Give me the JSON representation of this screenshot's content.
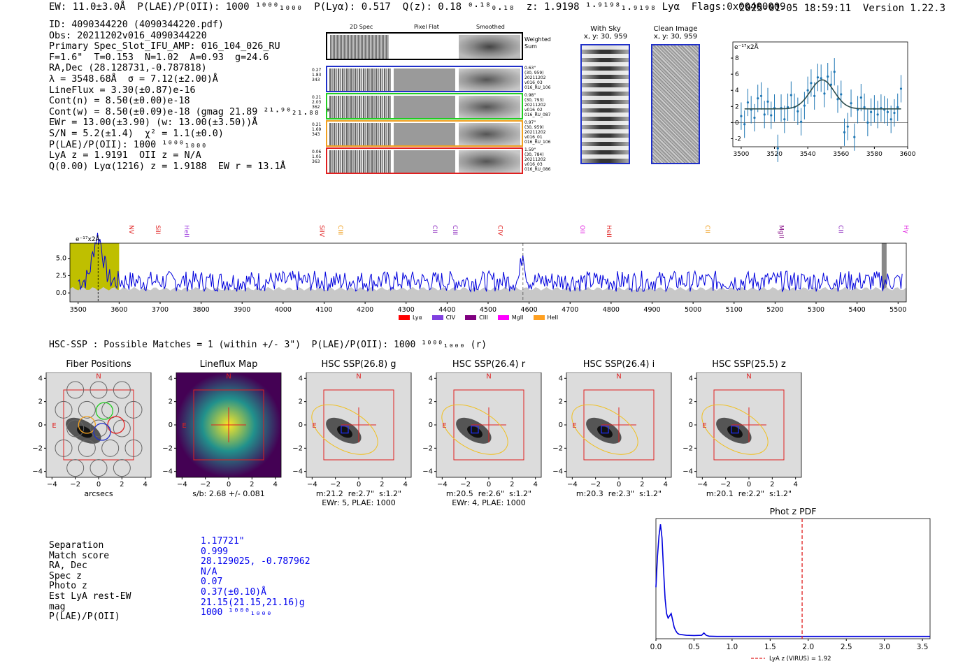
{
  "header": {
    "line": "EW: 11.0±3.0Å  P(LAE)/P(OII): 1000 ¹⁰⁰⁰₁₀₀₀  P(Lyα): 0.517  Q(z): 0.18 ⁰·¹⁸₀.₁₈  z: 1.9198 ¹·⁹¹⁹⁸₁.₉₁₉₈ Lyα  Flags:0x00400009",
    "timestamp": "2025-01-05 18:59:11  Version 1.22.3"
  },
  "info": {
    "lines": [
      "ID: 4090344220 (4090344220.pdf)",
      "Obs: 20211202v016_4090344220",
      "Primary Spec_Slot_IFU_AMP: 016_104_026_RU",
      "F=1.6\"  T=0.153  N=1.02  A=0.93  g=24.6",
      "RA,Dec (28.128731,-0.787818)",
      "λ = 3548.68Å  σ = 7.12(±2.00)Å",
      "LineFlux = 3.30(±0.87)e-16",
      "Cont(n) = 8.50(±0.00)e-18",
      "Cont(w) = 8.50(±0.09)e-18 (gmag 21.89 ²¹·⁹⁰₂₁.₈₈ *)",
      "EWr = 13.00(±3.90) (w: 13.00(±3.50))Å",
      "S/N = 5.2(±1.4)  χ² = 1.1(±0.0)",
      "P(LAE)/P(OII): 1000 ¹⁰⁰⁰₁₀₀₀",
      "LyA z = 1.9191  OII z = N/A",
      "Q(0.00) Lyα(1216) z = 1.9188  EW r = 13.1Å"
    ]
  },
  "cutouts": {
    "col_labels": [
      "2D Spec",
      "Pixel Flat",
      "Smoothed"
    ],
    "weighted_label": "Weighted Sum",
    "rows": [
      {
        "stats": [
          "0.27",
          "1.83",
          "343"
        ],
        "meta": [
          "0.63\"",
          "(30, 959)",
          "20211202",
          "v016_03",
          "016_RU_106"
        ],
        "color": "#2030c8"
      },
      {
        "stats": [
          "0.21",
          "2.03",
          "362"
        ],
        "meta": [
          "0.98\"",
          "(30, 793)",
          "20211202",
          "v016_02",
          "016_RU_087"
        ],
        "color": "#22cc22"
      },
      {
        "stats": [
          "0.21",
          "1.69",
          "343"
        ],
        "meta": [
          "0.97\"",
          "(30, 959)",
          "20211202",
          "v016_01",
          "016_RU_106"
        ],
        "color": "#f0a020"
      },
      {
        "stats": [
          "0.06",
          "1.05",
          "363"
        ],
        "meta": [
          "1.59\"",
          "(30, 784)",
          "20211202",
          "v016_03",
          "016_RU_086"
        ],
        "color": "#e02020"
      }
    ],
    "with_sky": {
      "title": "With Sky",
      "coords": "x, y: 30, 959"
    },
    "clean": {
      "title": "Clean Image",
      "coords": "x, y: 30, 959"
    }
  },
  "line_labels": [
    {
      "name": "NV",
      "wave": 3620,
      "color": "#e02020"
    },
    {
      "name": "SiII",
      "wave": 3685,
      "color": "#e02020"
    },
    {
      "name": "HeII",
      "wave": 3755,
      "color": "#a040e0"
    },
    {
      "name": "SiIV",
      "wave": 4085,
      "color": "#e02020"
    },
    {
      "name": "CIII",
      "wave": 4130,
      "color": "#f0a020"
    },
    {
      "name": "CII",
      "wave": 4360,
      "color": "#9030c0"
    },
    {
      "name": "CIII",
      "wave": 4410,
      "color": "#9030c0"
    },
    {
      "name": "CIV",
      "wave": 4520,
      "color": "#e02020"
    },
    {
      "name": "OII",
      "wave": 4720,
      "color": "#e020e0"
    },
    {
      "name": "HeII",
      "wave": 4785,
      "color": "#e02020"
    },
    {
      "name": "CII",
      "wave": 5025,
      "color": "#f0a020"
    },
    {
      "name": "MgII",
      "wave": 5205,
      "color": "#800080"
    },
    {
      "name": "CII",
      "wave": 5350,
      "color": "#9030c0"
    },
    {
      "name": "Hγ",
      "wave": 5510,
      "color": "#e020e0"
    }
  ],
  "legend": [
    {
      "label": "Lyα",
      "color": "#ff0000"
    },
    {
      "label": "CIV",
      "color": "#8040e0"
    },
    {
      "label": "CIII",
      "color": "#800080"
    },
    {
      "label": "MgII",
      "color": "#ff00ff"
    },
    {
      "label": "HeII",
      "color": "#ffa020"
    }
  ],
  "hsc": {
    "header": "HSC-SSP : Possible Matches = 1 (within +/- 3\")  P(LAE)/P(OII): 1000 ¹⁰⁰⁰₁₀₀₀ (r)",
    "panels": [
      {
        "title": "Fiber Positions",
        "caption1": "arcsecs",
        "caption2": ""
      },
      {
        "title": "Lineflux Map",
        "caption1": "s/b: 2.68 +/- 0.081",
        "caption2": ""
      },
      {
        "title": "HSC SSP(26.8) g",
        "caption1": "m:21.2  re:2.7\"  s:1.2\"",
        "caption2": "EWr: 5, PLAE: 1000"
      },
      {
        "title": "HSC SSP(26.4) r",
        "caption1": "m:20.5  re:2.6\"  s:1.2\"",
        "caption2": "EWr: 4, PLAE: 1000"
      },
      {
        "title": "HSC SSP(26.4) i",
        "caption1": "m:20.3  re:2.3\"  s:1.2\"",
        "caption2": ""
      },
      {
        "title": "HSC SSP(25.5) z",
        "caption1": "m:20.1  re:2.2\"  s:1.2\"",
        "caption2": ""
      }
    ],
    "north": "N",
    "east": "E"
  },
  "match": {
    "labels": [
      "Separation",
      "Match score",
      "RA, Dec",
      "Spec z",
      "Photo z",
      "Est LyA rest-EW",
      "mag",
      "P(LAE)/P(OII)"
    ],
    "values": [
      "1.17721\"",
      "0.999",
      "28.129025, -0.787962",
      "N/A",
      "0.07",
      "0.37(±0.10)Å",
      "21.15(21.15,21.16)g",
      "1000 ¹⁰⁰⁰₁₀₀₀"
    ]
  },
  "chart_data": [
    {
      "type": "scatter",
      "title": "e⁻¹⁷x2Å",
      "xlim": [
        3495,
        3600
      ],
      "ylim": [
        -3,
        10
      ],
      "xticks": [
        3500,
        3520,
        3540,
        3560,
        3580,
        3600
      ],
      "yticks": [
        -2,
        0,
        2,
        4,
        6,
        8
      ],
      "x": [
        3500,
        3502,
        3504,
        3506,
        3508,
        3510,
        3512,
        3514,
        3516,
        3518,
        3520,
        3522,
        3524,
        3526,
        3528,
        3530,
        3532,
        3534,
        3536,
        3538,
        3540,
        3542,
        3544,
        3546,
        3548,
        3550,
        3552,
        3554,
        3556,
        3558,
        3560,
        3562,
        3564,
        3566,
        3568,
        3570,
        3572,
        3574,
        3576,
        3578,
        3580,
        3582,
        3584,
        3586,
        3588,
        3590,
        3592,
        3594,
        3596
      ],
      "y": [
        0.8,
        -0.2,
        2.5,
        1.6,
        0.6,
        3.0,
        3.3,
        1.0,
        2.6,
        0.9,
        1.8,
        -3.2,
        1.8,
        0.4,
        1.9,
        3.4,
        1.9,
        1.4,
        0.1,
        2.1,
        4.0,
        4.9,
        3.3,
        5.6,
        5.5,
        3.6,
        5.7,
        4.7,
        6.3,
        2.9,
        3.5,
        -1.2,
        -0.5,
        2.4,
        -1.8,
        1.6,
        3.1,
        1.9,
        0.0,
        1.3,
        1.7,
        1.0,
        1.8,
        1.6,
        1.3,
        0.4,
        1.2,
        1.9,
        4.2
      ],
      "yerr": 1.7,
      "fit": {
        "continuum": 1.7,
        "amplitude": 3.6,
        "center": 3548.68,
        "sigma": 7.12
      }
    },
    {
      "type": "line",
      "ylabel": "e⁻¹⁷x2Å",
      "xlim": [
        3480,
        5520
      ],
      "ylim": [
        -1.3,
        7.2
      ],
      "xticks": [
        3500,
        3600,
        3700,
        3800,
        3900,
        4000,
        4100,
        4200,
        4300,
        4400,
        4500,
        4600,
        4700,
        4800,
        4900,
        5000,
        5100,
        5200,
        5300,
        5400,
        5500
      ],
      "yticks": [
        0.0,
        2.5,
        5.0
      ],
      "line_wave": 3548.68,
      "marker_wave": 4585,
      "highlight_range": [
        3480,
        3600
      ],
      "masked_range": [
        5460,
        5472
      ],
      "mean_level": 1.7,
      "noise_amplitude": 1.5,
      "peaks": [
        {
          "wave": 3548,
          "height": 6.5,
          "width": 12
        },
        {
          "wave": 4585,
          "height": 4.2,
          "width": 5
        }
      ]
    },
    {
      "type": "line",
      "title": "Phot z PDF",
      "xlim": [
        0,
        3.6
      ],
      "ylim": [
        0,
        1.05
      ],
      "xticks": [
        0.0,
        0.5,
        1.0,
        1.5,
        2.0,
        2.5,
        3.0,
        3.5
      ],
      "x": [
        0.0,
        0.02,
        0.04,
        0.06,
        0.08,
        0.1,
        0.12,
        0.14,
        0.16,
        0.18,
        0.2,
        0.22,
        0.24,
        0.26,
        0.28,
        0.3,
        0.35,
        0.4,
        0.5,
        0.6,
        0.63,
        0.66,
        0.7,
        0.8,
        1.0,
        1.5,
        2.0,
        2.5,
        3.0,
        3.6
      ],
      "y": [
        0.45,
        0.72,
        0.9,
        1.0,
        0.88,
        0.6,
        0.35,
        0.22,
        0.18,
        0.2,
        0.22,
        0.16,
        0.1,
        0.07,
        0.05,
        0.04,
        0.035,
        0.03,
        0.028,
        0.03,
        0.05,
        0.03,
        0.022,
        0.02,
        0.02,
        0.02,
        0.02,
        0.02,
        0.02,
        0.02
      ],
      "vline": 1.92,
      "legend": "LyA z (VIRUS) = 1.92"
    }
  ]
}
